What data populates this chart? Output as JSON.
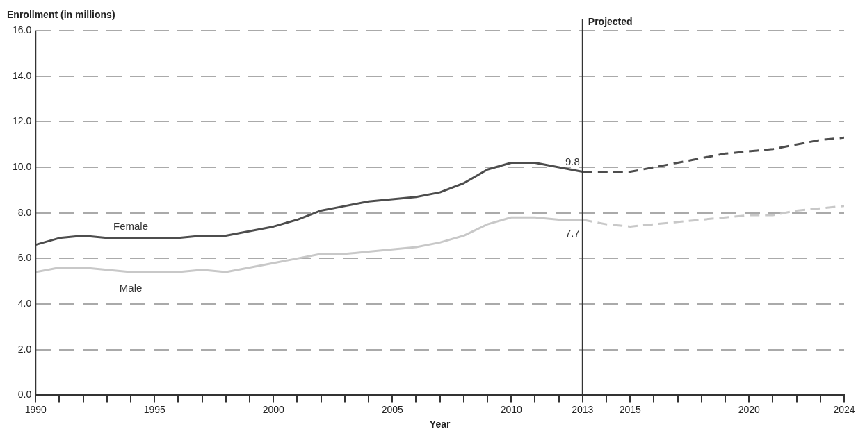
{
  "chart_data": {
    "type": "line",
    "ylabel": "Enrollment (in millions)",
    "xlabel": "Year",
    "x": [
      1990,
      1991,
      1992,
      1993,
      1994,
      1995,
      1996,
      1997,
      1998,
      1999,
      2000,
      2001,
      2002,
      2003,
      2004,
      2005,
      2006,
      2007,
      2008,
      2009,
      2010,
      2011,
      2012,
      2013
    ],
    "series": [
      {
        "name": "Female",
        "color": "#4d4d4d",
        "line_style": "solid",
        "values": [
          6.6,
          6.9,
          7.0,
          6.9,
          6.9,
          6.9,
          6.9,
          7.0,
          7.0,
          7.2,
          7.4,
          7.7,
          8.1,
          8.3,
          8.5,
          8.6,
          8.7,
          8.9,
          9.3,
          9.9,
          10.2,
          10.2,
          10.0,
          9.8
        ]
      },
      {
        "name": "Male",
        "color": "#c8c8c8",
        "line_style": "solid",
        "values": [
          5.4,
          5.6,
          5.6,
          5.5,
          5.4,
          5.4,
          5.4,
          5.5,
          5.4,
          5.6,
          5.8,
          6.0,
          6.2,
          6.2,
          6.3,
          6.4,
          6.5,
          6.7,
          7.0,
          7.5,
          7.8,
          7.8,
          7.7,
          7.7
        ]
      },
      {
        "color": "#4d4d4d",
        "line_style": "dashed",
        "x": [
          2013,
          2014,
          2015,
          2016,
          2017,
          2018,
          2019,
          2020,
          2021,
          2022,
          2023,
          2024
        ],
        "values": [
          9.8,
          9.8,
          9.8,
          10.0,
          10.2,
          10.4,
          10.6,
          10.7,
          10.8,
          11.0,
          11.2,
          11.3
        ]
      },
      {
        "color": "#c8c8c8",
        "line_style": "dashed",
        "x": [
          2013,
          2014,
          2015,
          2016,
          2017,
          2018,
          2019,
          2020,
          2021,
          2022,
          2023,
          2024
        ],
        "values": [
          7.7,
          7.5,
          7.4,
          7.5,
          7.6,
          7.7,
          7.8,
          7.9,
          7.9,
          8.1,
          8.2,
          8.3
        ]
      }
    ],
    "xlim": [
      1990,
      2024
    ],
    "xticks": [
      1990,
      {
        "value": 1991,
        "label": null
      },
      {
        "value": 1992,
        "label": null
      },
      {
        "value": 1993,
        "label": null
      },
      {
        "value": 1994,
        "label": null
      },
      1995,
      {
        "value": 1996,
        "label": null
      },
      {
        "value": 1997,
        "label": null
      },
      {
        "value": 1998,
        "label": null
      },
      {
        "value": 1999,
        "label": null
      },
      2000,
      {
        "value": 2001,
        "label": null
      },
      {
        "value": 2002,
        "label": null
      },
      {
        "value": 2003,
        "label": null
      },
      {
        "value": 2004,
        "label": null
      },
      2005,
      {
        "value": 2006,
        "label": null
      },
      {
        "value": 2007,
        "label": null
      },
      {
        "value": 2008,
        "label": null
      },
      {
        "value": 2009,
        "label": null
      },
      2010,
      {
        "value": 2011,
        "label": null
      },
      {
        "value": 2012,
        "label": null
      },
      2013,
      {
        "value": 2014,
        "label": null
      },
      2015,
      {
        "value": 2016,
        "label": null
      },
      {
        "value": 2017,
        "label": null
      },
      {
        "value": 2018,
        "label": null
      },
      {
        "value": 2019,
        "label": null
      },
      2020,
      {
        "value": 2021,
        "label": null
      },
      {
        "value": 2022,
        "label": null
      },
      {
        "value": 2023,
        "label": null
      },
      2024
    ],
    "ylim": [
      0,
      16
    ],
    "yticks": [
      {
        "value": 0,
        "label": "0.0"
      },
      {
        "value": 2,
        "label": "2.0"
      },
      {
        "value": 4,
        "label": "4.0"
      },
      {
        "value": 6,
        "label": "6.0"
      },
      {
        "value": 8,
        "label": "8.0"
      },
      {
        "value": 10,
        "label": "10.0"
      },
      {
        "value": 12,
        "label": "12.0"
      },
      {
        "value": 14,
        "label": "14.0"
      },
      {
        "value": 16,
        "label": "16.0"
      }
    ],
    "ref_lines": [
      {
        "axis": "x",
        "value": 2013,
        "label": "Projected",
        "color": "#333333"
      }
    ],
    "annotations": [
      {
        "text": "9.8",
        "x": 2013,
        "y": 9.8
      },
      {
        "text": "7.7",
        "x": 2013,
        "y": 7.7
      }
    ],
    "grid": "y",
    "legend": false,
    "marker": "none"
  }
}
